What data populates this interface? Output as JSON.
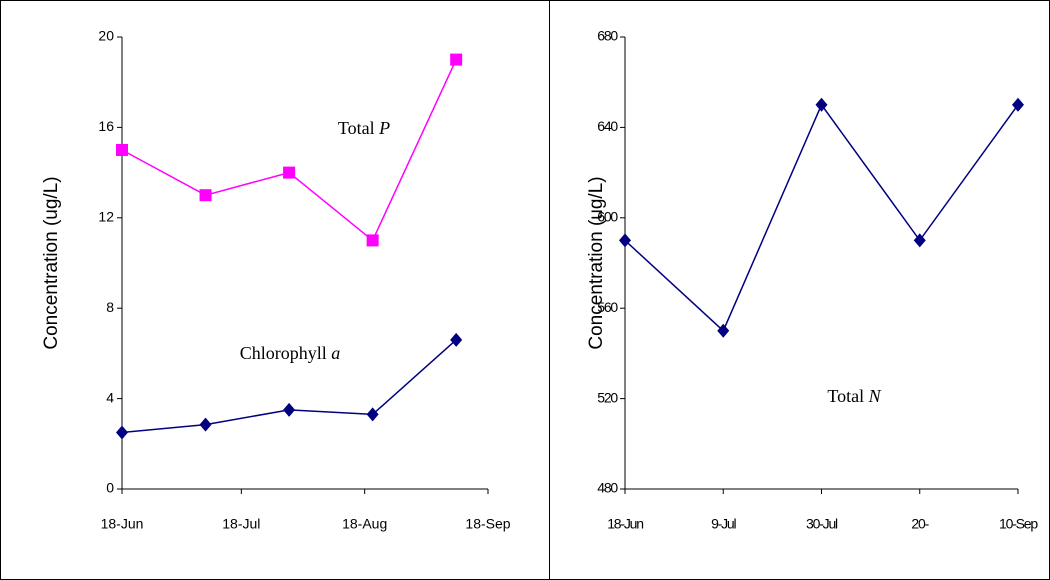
{
  "chart_data": [
    {
      "type": "date-line",
      "y_label": "Concentration (ug/L)",
      "x": [
        "18-Jun",
        "9-Jul",
        "30-Jul",
        "20-Aug",
        "10-Sep"
      ],
      "xlim": [
        "18-Jun",
        "18-Sep"
      ],
      "xticks": [
        "18-Jun",
        "18-Jul",
        "18-Aug",
        "18-Sep"
      ],
      "ylim": [
        0,
        20
      ],
      "yticks": [
        0,
        4,
        8,
        12,
        16,
        20
      ],
      "series": [
        {
          "name": "Total P",
          "color": "#ff00ff",
          "marker": "square",
          "values": [
            15,
            13,
            14,
            11,
            19
          ]
        },
        {
          "name": "Chlorophyll a",
          "color": "#000080",
          "marker": "diamond",
          "values": [
            2.5,
            2.85,
            3.5,
            3.3,
            6.6
          ]
        }
      ]
    },
    {
      "type": "line",
      "y_label": "Concentration (ug/L)",
      "categories": [
        "18-Jun",
        "9-Jul",
        "30-Jul",
        "20-",
        "10-Sep"
      ],
      "ylim": [
        480,
        680
      ],
      "yticks": [
        480,
        520,
        560,
        600,
        640,
        680
      ],
      "series": [
        {
          "name": "Total N",
          "color": "#000080",
          "marker": "diamond",
          "values": [
            590,
            550,
            650,
            590,
            650
          ]
        }
      ]
    }
  ]
}
